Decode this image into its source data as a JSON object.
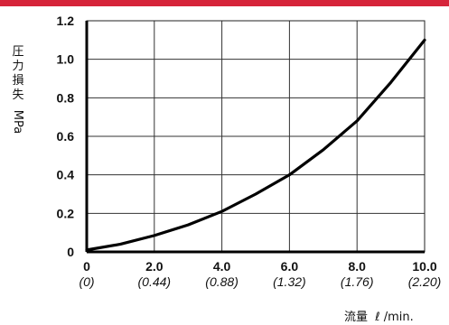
{
  "chart_data": {
    "type": "line",
    "ylabel_chars": [
      "圧",
      "力",
      "損",
      "失"
    ],
    "ylabel_unit": "MPa",
    "xlabel": "流量  ℓ /min.",
    "xlim": [
      0,
      10
    ],
    "ylim": [
      0,
      1.2
    ],
    "grid": true,
    "y_ticks": [
      {
        "value": 0,
        "label": "0"
      },
      {
        "value": 0.2,
        "label": "0.2"
      },
      {
        "value": 0.4,
        "label": "0.4"
      },
      {
        "value": 0.6,
        "label": "0.6"
      },
      {
        "value": 0.8,
        "label": "0.8"
      },
      {
        "value": 1.0,
        "label": "1.0"
      },
      {
        "value": 1.2,
        "label": "1.2"
      }
    ],
    "x_ticks": [
      {
        "value": 0,
        "label": "0",
        "sublabel": "(0)"
      },
      {
        "value": 2,
        "label": "2.0",
        "sublabel": "(0.44)"
      },
      {
        "value": 4,
        "label": "4.0",
        "sublabel": "(0.88)"
      },
      {
        "value": 6,
        "label": "6.0",
        "sublabel": "(1.32)"
      },
      {
        "value": 8,
        "label": "8.0",
        "sublabel": "(1.76)"
      },
      {
        "value": 10,
        "label": "10.0",
        "sublabel": "(2.20)"
      }
    ],
    "series": [
      {
        "x": [
          0,
          1,
          2,
          3,
          4,
          5,
          6,
          7,
          8,
          9,
          10
        ],
        "y": [
          0.01,
          0.04,
          0.085,
          0.14,
          0.21,
          0.3,
          0.4,
          0.53,
          0.68,
          0.88,
          1.1
        ]
      }
    ]
  },
  "colors": {
    "accent_bar": "#d6243a",
    "curve": "#000000",
    "grid": "#333333"
  }
}
